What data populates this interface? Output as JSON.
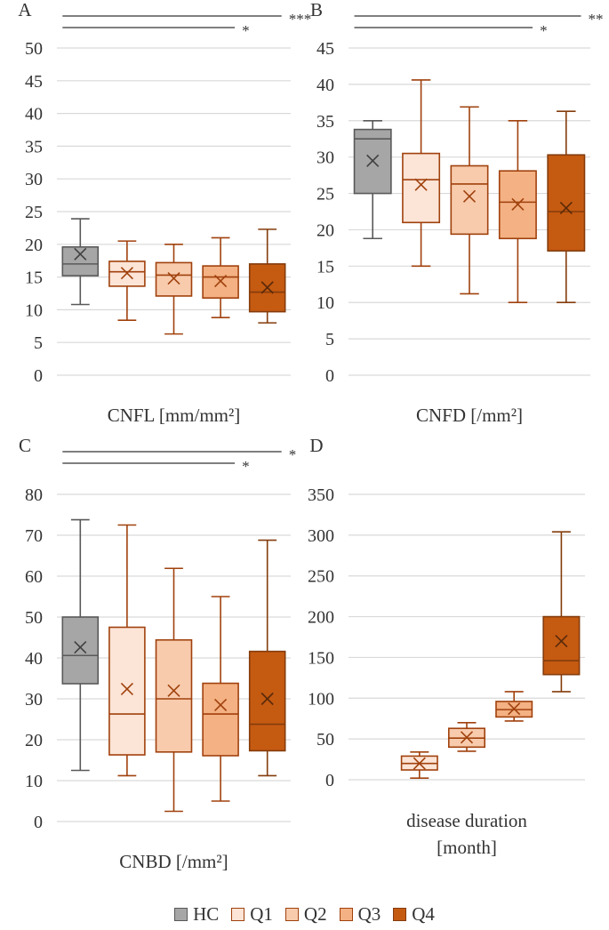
{
  "legend": [
    {
      "label": "HC",
      "fill": "#a6a6a6",
      "stroke": "#595959"
    },
    {
      "label": "Q1",
      "fill": "#fce4d6",
      "stroke": "#a0410d"
    },
    {
      "label": "Q2",
      "fill": "#f8cbad",
      "stroke": "#a0410d"
    },
    {
      "label": "Q3",
      "fill": "#f4b183",
      "stroke": "#a0410d"
    },
    {
      "label": "Q4",
      "fill": "#c55a11",
      "stroke": "#843c0c"
    }
  ],
  "chart_data": [
    {
      "type": "boxplot",
      "panel": "A",
      "xlabel": "CNFL [mm/mm²]",
      "ylim": [
        0,
        50
      ],
      "yticks": [
        0,
        5,
        10,
        15,
        20,
        25,
        30,
        35,
        40,
        45,
        50
      ],
      "ytick_labels": [
        "0",
        "5",
        "10",
        "15",
        "20",
        "25",
        "30",
        "35",
        "40",
        "45",
        "50"
      ],
      "series": [
        {
          "name": "HC",
          "min": 10.8,
          "q1": 15.2,
          "median": 17.0,
          "q3": 19.6,
          "max": 23.9,
          "mean": 18.5
        },
        {
          "name": "Q1",
          "min": 8.4,
          "q1": 13.6,
          "median": 15.8,
          "q3": 17.4,
          "max": 20.5,
          "mean": 15.6
        },
        {
          "name": "Q2",
          "min": 6.3,
          "q1": 12.1,
          "median": 15.3,
          "q3": 17.2,
          "max": 20.0,
          "mean": 14.8
        },
        {
          "name": "Q3",
          "min": 8.8,
          "q1": 11.8,
          "median": 15.0,
          "q3": 16.7,
          "max": 21.0,
          "mean": 14.4
        },
        {
          "name": "Q4",
          "min": 8.0,
          "q1": 9.7,
          "median": 12.7,
          "q3": 17.0,
          "max": 22.3,
          "mean": 13.4
        }
      ],
      "significance": [
        {
          "from": "HC",
          "to": "Q4",
          "label": "***"
        },
        {
          "from": "HC",
          "to": "Q3",
          "label": "*"
        }
      ]
    },
    {
      "type": "boxplot",
      "panel": "B",
      "xlabel": "CNFD [/mm²]",
      "ylim": [
        0,
        45
      ],
      "yticks": [
        0,
        5,
        10,
        15,
        20,
        25,
        30,
        35,
        40,
        45
      ],
      "ytick_labels": [
        "0",
        "5",
        "10",
        "15",
        "20",
        "25",
        "30",
        "35",
        "40",
        "45"
      ],
      "series": [
        {
          "name": "HC",
          "min": 18.8,
          "q1": 25.0,
          "median": 32.5,
          "q3": 33.8,
          "max": 35.0,
          "mean": 29.5
        },
        {
          "name": "Q1",
          "min": 15.0,
          "q1": 21.0,
          "median": 26.9,
          "q3": 30.5,
          "max": 40.6,
          "mean": 26.2
        },
        {
          "name": "Q2",
          "min": 11.2,
          "q1": 19.4,
          "median": 26.3,
          "q3": 28.8,
          "max": 36.9,
          "mean": 24.6
        },
        {
          "name": "Q3",
          "min": 10.0,
          "q1": 18.8,
          "median": 23.8,
          "q3": 28.1,
          "max": 35.0,
          "mean": 23.5
        },
        {
          "name": "Q4",
          "min": 10.0,
          "q1": 17.1,
          "median": 22.5,
          "q3": 30.3,
          "max": 36.3,
          "mean": 23.0
        }
      ],
      "significance": [
        {
          "from": "HC",
          "to": "Q4",
          "label": "**"
        },
        {
          "from": "HC",
          "to": "Q3",
          "label": "*"
        }
      ]
    },
    {
      "type": "boxplot",
      "panel": "C",
      "xlabel": "CNBD [/mm²]",
      "ylim": [
        0,
        80
      ],
      "yticks": [
        0,
        10,
        20,
        30,
        40,
        50,
        60,
        70,
        80
      ],
      "ytick_labels": [
        "0",
        "10",
        "20",
        "30",
        "40",
        "50",
        "60",
        "70",
        "80"
      ],
      "series": [
        {
          "name": "HC",
          "min": 12.5,
          "q1": 33.7,
          "median": 40.6,
          "q3": 50.0,
          "max": 73.8,
          "mean": 42.6
        },
        {
          "name": "Q1",
          "min": 11.2,
          "q1": 16.3,
          "median": 26.3,
          "q3": 47.5,
          "max": 72.5,
          "mean": 32.4
        },
        {
          "name": "Q2",
          "min": 2.5,
          "q1": 17.0,
          "median": 30.0,
          "q3": 44.4,
          "max": 61.9,
          "mean": 32.0
        },
        {
          "name": "Q3",
          "min": 5.0,
          "q1": 16.1,
          "median": 26.3,
          "q3": 33.8,
          "max": 55.0,
          "mean": 28.5
        },
        {
          "name": "Q4",
          "min": 11.2,
          "q1": 17.3,
          "median": 23.8,
          "q3": 41.6,
          "max": 68.8,
          "mean": 30.0
        }
      ],
      "significance": [
        {
          "from": "HC",
          "to": "Q4",
          "label": "*"
        },
        {
          "from": "HC",
          "to": "Q3",
          "label": "*"
        }
      ]
    },
    {
      "type": "boxplot",
      "panel": "D",
      "xlabel": "disease duration [month]",
      "xlabel_lines": [
        "disease duration",
        "[month]"
      ],
      "ylim": [
        0,
        350
      ],
      "yticks": [
        0,
        50,
        100,
        150,
        200,
        250,
        300,
        350
      ],
      "ytick_labels": [
        "0",
        "50",
        "100",
        "150",
        "200",
        "250",
        "300",
        "350"
      ],
      "series": [
        {
          "name": "Q1",
          "min": 2,
          "q1": 12,
          "median": 20,
          "q3": 29,
          "max": 34,
          "mean": 20
        },
        {
          "name": "Q2",
          "min": 35,
          "q1": 40,
          "median": 51,
          "q3": 63,
          "max": 70,
          "mean": 52
        },
        {
          "name": "Q3",
          "min": 72,
          "q1": 77,
          "median": 86,
          "q3": 96,
          "max": 108,
          "mean": 87
        },
        {
          "name": "Q4",
          "min": 108,
          "q1": 129,
          "median": 146,
          "q3": 200,
          "max": 304,
          "mean": 170
        }
      ],
      "significance": []
    }
  ]
}
